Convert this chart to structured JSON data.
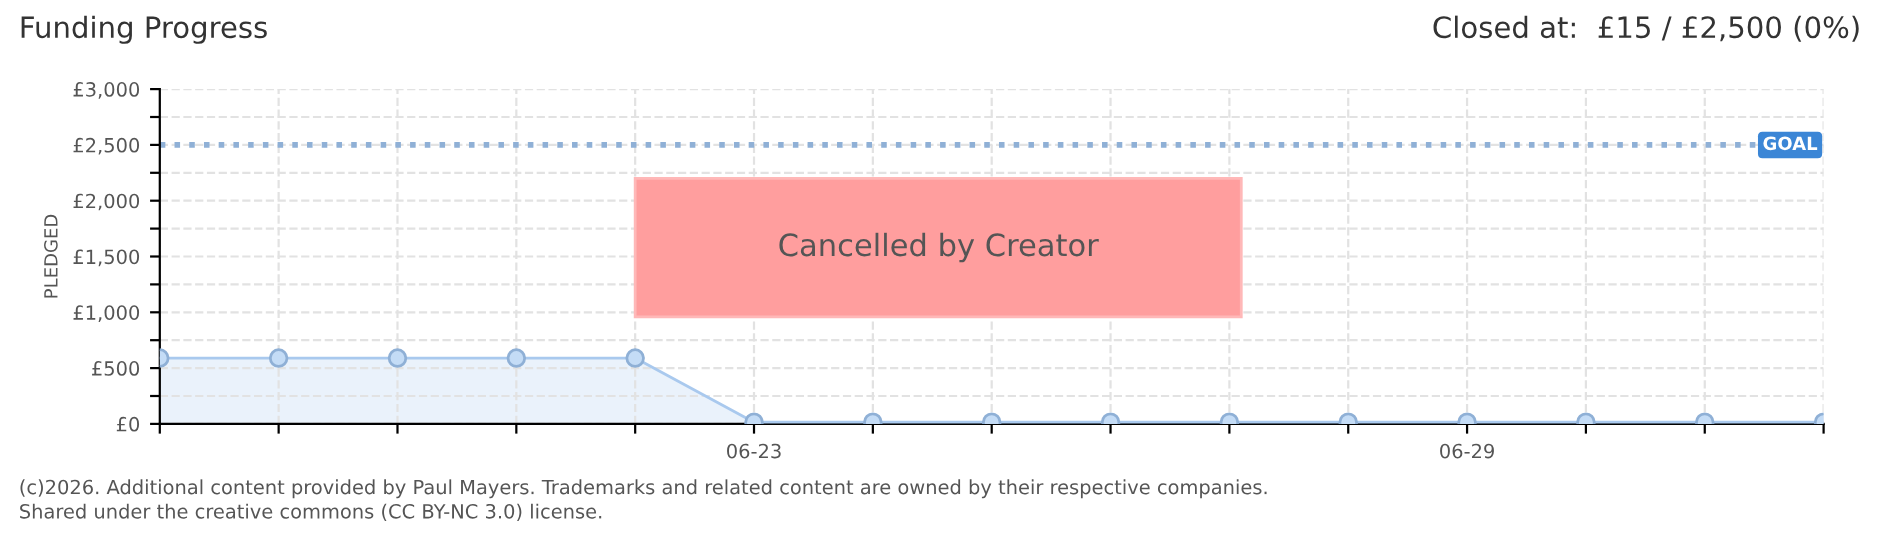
{
  "chart_data": {
    "type": "area",
    "title": "Funding Progress",
    "subtitle": "Closed at:  £15 / £2,500 (0%)",
    "ylabel": "PLEDGED",
    "categories": [
      null,
      null,
      null,
      null,
      null,
      "06-23",
      null,
      null,
      null,
      null,
      null,
      "06-29",
      null,
      null,
      null
    ],
    "series": [
      {
        "color": "#a9c9ee",
        "values": [
          590,
          590,
          590,
          590,
          590,
          15,
          15,
          15,
          15,
          15,
          15,
          15,
          15,
          15,
          15
        ]
      }
    ],
    "ylim": [
      0,
      3000
    ],
    "yticks": [
      {
        "value": 0,
        "label": "£0"
      },
      {
        "value": 250,
        "label": null
      },
      {
        "value": 500,
        "label": "£500"
      },
      {
        "value": 750,
        "label": null
      },
      {
        "value": 1000,
        "label": "£1,000"
      },
      {
        "value": 1250,
        "label": null
      },
      {
        "value": 1500,
        "label": "£1,500"
      },
      {
        "value": 1750,
        "label": null
      },
      {
        "value": 2000,
        "label": "£2,000"
      },
      {
        "value": 2250,
        "label": null
      },
      {
        "value": 2500,
        "label": "£2,500"
      },
      {
        "value": 2750,
        "label": null
      },
      {
        "value": 3000,
        "label": "£3,000"
      }
    ],
    "ref_lines": [
      {
        "axis": "y",
        "value": 2500,
        "label": "GOAL",
        "color": "#8fb0d6",
        "line_style": "dotted"
      }
    ],
    "annotations": [
      "Cancelled by Creator",
      "(c)2026. Additional content provided by Paul Mayers. Trademarks and related content are owned by their respective companies.",
      "Shared under the creative commons (CC BY-NC 3.0) license."
    ],
    "grid": true,
    "marker": "circle",
    "legend": false
  }
}
